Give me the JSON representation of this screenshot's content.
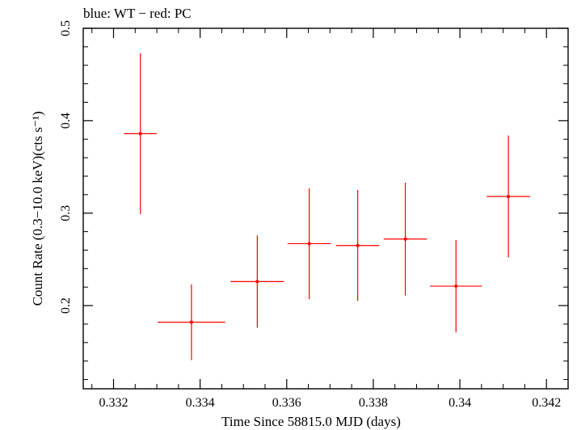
{
  "chart_data": {
    "type": "scatter",
    "title": "blue: WT − red: PC",
    "xlabel": "Time Since 58815.0 MJD (days)",
    "ylabel": "Count Rate (0.3−10.0 keV)(cts s⁻¹)",
    "xlim": [
      0.3313,
      0.3425
    ],
    "ylim": [
      0.11,
      0.5
    ],
    "xticks": [
      0.332,
      0.334,
      0.336,
      0.338,
      0.34,
      0.342
    ],
    "xtick_labels": [
      "0.332",
      "0.334",
      "0.336",
      "0.338",
      "0.34",
      "0.342"
    ],
    "yticks": [
      0.2,
      0.3,
      0.4,
      0.5
    ],
    "ytick_labels": [
      "0.2",
      "0.3",
      "0.4",
      "0.5"
    ],
    "grid": false,
    "series": [
      {
        "color": "#ff0000",
        "points": [
          {
            "x": 0.33262,
            "y": 0.386,
            "xerr_lo": 0.00038,
            "xerr_hi": 0.00038,
            "yerr_lo": 0.087,
            "yerr_hi": 0.087
          },
          {
            "x": 0.3338,
            "y": 0.182,
            "xerr_lo": 0.00078,
            "xerr_hi": 0.00078,
            "yerr_lo": 0.041,
            "yerr_hi": 0.041
          },
          {
            "x": 0.33532,
            "y": 0.226,
            "xerr_lo": 0.00062,
            "xerr_hi": 0.00062,
            "yerr_lo": 0.05,
            "yerr_hi": 0.05
          },
          {
            "x": 0.33652,
            "y": 0.267,
            "xerr_lo": 0.0005,
            "xerr_hi": 0.0005,
            "yerr_lo": 0.06,
            "yerr_hi": 0.06
          },
          {
            "x": 0.33764,
            "y": 0.265,
            "xerr_lo": 0.0005,
            "xerr_hi": 0.0005,
            "yerr_lo": 0.06,
            "yerr_hi": 0.06
          },
          {
            "x": 0.33874,
            "y": 0.272,
            "xerr_lo": 0.0005,
            "xerr_hi": 0.0005,
            "yerr_lo": 0.061,
            "yerr_hi": 0.061
          },
          {
            "x": 0.33991,
            "y": 0.221,
            "xerr_lo": 0.0006,
            "xerr_hi": 0.0006,
            "yerr_lo": 0.05,
            "yerr_hi": 0.05
          },
          {
            "x": 0.34112,
            "y": 0.318,
            "xerr_lo": 0.0005,
            "xerr_hi": 0.0005,
            "yerr_lo": 0.066,
            "yerr_hi": 0.066
          }
        ]
      }
    ]
  }
}
